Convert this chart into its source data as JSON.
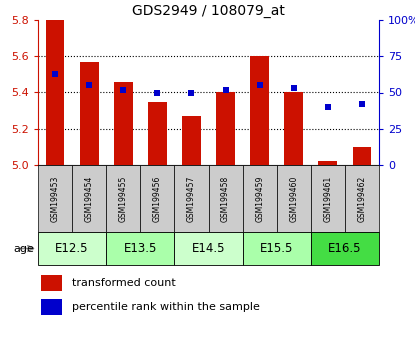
{
  "title": "GDS2949 / 108079_at",
  "samples": [
    "GSM199453",
    "GSM199454",
    "GSM199455",
    "GSM199456",
    "GSM199457",
    "GSM199458",
    "GSM199459",
    "GSM199460",
    "GSM199461",
    "GSM199462"
  ],
  "transformed_count": [
    5.8,
    5.57,
    5.46,
    5.35,
    5.27,
    5.4,
    5.6,
    5.4,
    5.02,
    5.1
  ],
  "percentile_rank": [
    63,
    55,
    52,
    50,
    50,
    52,
    55,
    53,
    40,
    42
  ],
  "ylim_left": [
    5.0,
    5.8
  ],
  "ylim_right": [
    0,
    100
  ],
  "yticks_left": [
    5.0,
    5.2,
    5.4,
    5.6,
    5.8
  ],
  "yticks_right": [
    0,
    25,
    50,
    75,
    100
  ],
  "ytick_labels_right": [
    "0",
    "25",
    "50",
    "75",
    "100%"
  ],
  "bar_color": "#cc1100",
  "dot_color": "#0000cc",
  "bar_width": 0.55,
  "age_group_defs": [
    {
      "label": "E12.5",
      "start": 0,
      "end": 1,
      "color": "#ccffcc"
    },
    {
      "label": "E13.5",
      "start": 2,
      "end": 3,
      "color": "#aaffaa"
    },
    {
      "label": "E14.5",
      "start": 4,
      "end": 5,
      "color": "#ccffcc"
    },
    {
      "label": "E15.5",
      "start": 6,
      "end": 7,
      "color": "#aaffaa"
    },
    {
      "label": "E16.5",
      "start": 8,
      "end": 9,
      "color": "#44dd44"
    }
  ],
  "legend_bar_label": "transformed count",
  "legend_dot_label": "percentile rank within the sample",
  "tick_label_color_left": "#cc1100",
  "tick_label_color_right": "#0000cc",
  "sample_bg_color": "#cccccc",
  "age_label": "age"
}
